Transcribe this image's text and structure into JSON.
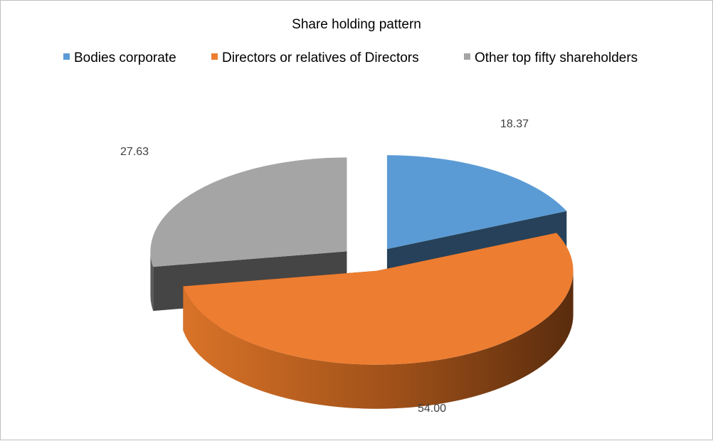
{
  "chart_data": {
    "type": "pie",
    "title": "Share holding pattern",
    "legend_position": "top",
    "exploded": true,
    "three_d": true,
    "categories": [
      "Bodies corporate",
      "Directors or relatives of Directors",
      "Other top fifty shareholders"
    ],
    "values": [
      18.37,
      54.0,
      27.63
    ],
    "data_labels": [
      "18.37",
      "54.00",
      "27.63"
    ],
    "colors": [
      "#5b9bd5",
      "#ed7d31",
      "#a5a5a5"
    ]
  }
}
